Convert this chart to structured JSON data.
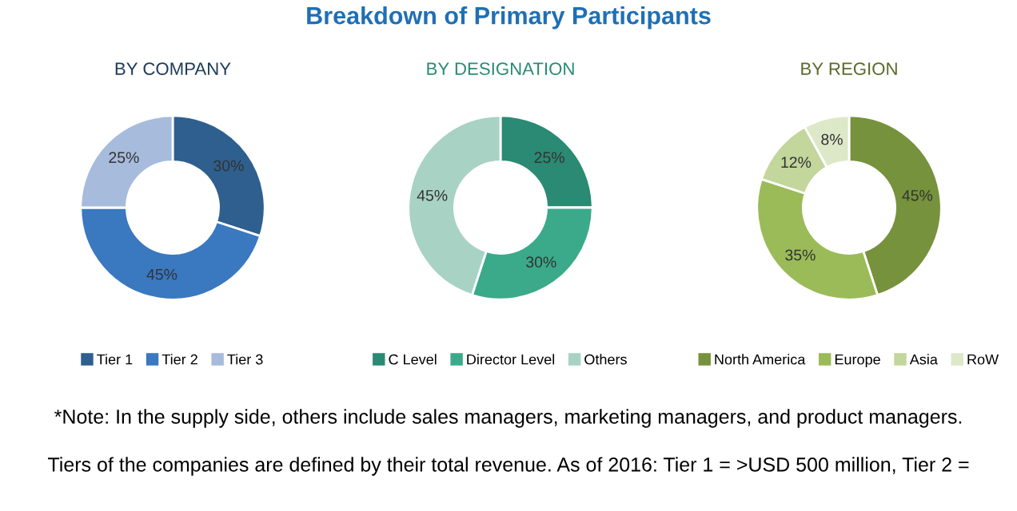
{
  "chart_data": [
    {
      "type": "other",
      "title": "Breakdown of Primary Participants",
      "annotations": [
        "*Note: In the supply side, others include sales managers, marketing managers, and product managers.",
        "Tiers of the companies are defined by their total revenue. As of 2016: Tier 1 = >USD 500 million, Tier 2 ="
      ]
    },
    {
      "type": "donut",
      "title": "BY COMPANY",
      "categories": [
        "Tier 1",
        "Tier 2",
        "Tier 3"
      ],
      "values": [
        30,
        45,
        25
      ],
      "value_labels": [
        "30%",
        "45%",
        "25%"
      ],
      "colors": [
        "#2e5f8f",
        "#3a78c0",
        "#a7bbdc"
      ],
      "legend": "bottom"
    },
    {
      "type": "donut",
      "title": "BY DESIGNATION",
      "categories": [
        "C Level",
        "Director Level",
        "Others"
      ],
      "values": [
        25,
        30,
        45
      ],
      "value_labels": [
        "25%",
        "30%",
        "45%"
      ],
      "colors": [
        "#2a8a73",
        "#3aaa8a",
        "#a8d2c4"
      ],
      "legend": "bottom"
    },
    {
      "type": "donut",
      "title": "BY REGION",
      "categories": [
        "North America",
        "Europe",
        "Asia",
        "RoW"
      ],
      "values": [
        45,
        35,
        12,
        8
      ],
      "value_labels": [
        "45%",
        "35%",
        "12%",
        "8%"
      ],
      "colors": [
        "#76923c",
        "#9bbb59",
        "#c3d69b",
        "#dde8c8"
      ],
      "legend": "bottom"
    }
  ]
}
